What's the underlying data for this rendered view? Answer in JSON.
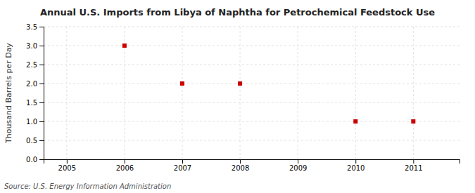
{
  "chart_data": {
    "type": "scatter",
    "title": "Annual U.S. Imports from Libya of Naphtha for Petrochemical Feedstock Use",
    "y_label": "Thousand Barrels per Day",
    "annotations": [
      "Source: U.S. Energy Information Administration"
    ],
    "x": [
      2006,
      2007,
      2008,
      2010,
      2011
    ],
    "values": [
      3.0,
      2.0,
      2.0,
      1.0,
      1.0
    ],
    "color": "#cc0000",
    "marker": "square",
    "xlim": [
      2004.6,
      2011.8
    ],
    "ylim": [
      0.0,
      3.5
    ],
    "xticks": [
      2005,
      2006,
      2007,
      2008,
      2009,
      2010,
      2011
    ],
    "yticks": [
      {
        "value": 0.0,
        "label": "0.0"
      },
      0.5,
      {
        "value": 1.0,
        "label": "1.0"
      },
      1.5,
      {
        "value": 2.0,
        "label": "2.0"
      },
      2.5,
      {
        "value": 3.0,
        "label": "3.0"
      },
      3.5
    ],
    "grid": true
  }
}
